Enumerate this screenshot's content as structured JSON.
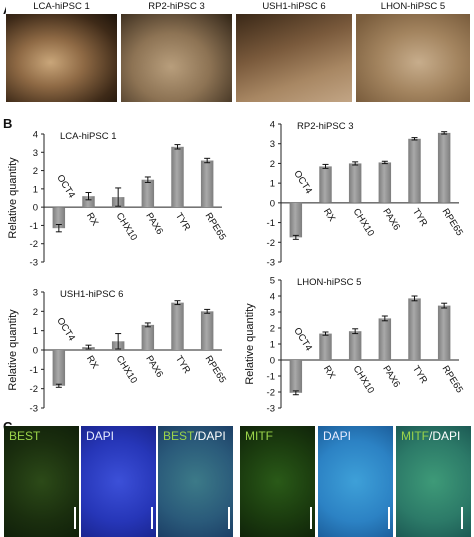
{
  "panels": {
    "a": "A",
    "b": "B",
    "c": "C"
  },
  "photos": [
    {
      "label": "LCA-hiPSC 1"
    },
    {
      "label": "RP2-hiPSC 3"
    },
    {
      "label": "USH1-hiPSC 6"
    },
    {
      "label": "LHON-hiPSC 5"
    }
  ],
  "chart_data": [
    {
      "type": "bar",
      "title": "LCA-hiPSC 1",
      "ylabel": "Relative quantity",
      "ylim": [
        -3,
        4
      ],
      "yticks": [
        "-3",
        "-2",
        "-1",
        "0",
        "1",
        "2",
        "3",
        "4"
      ],
      "categories": [
        "OCT4",
        "RX",
        "CHX10",
        "PAX6",
        "TYR",
        "RPE65"
      ],
      "values": [
        -1.15,
        0.6,
        0.55,
        1.5,
        3.3,
        2.55
      ],
      "errors": [
        0.2,
        0.2,
        0.5,
        0.15,
        0.12,
        0.12
      ],
      "grid": false
    },
    {
      "type": "bar",
      "title": "RP2-hiPSC 3",
      "ylabel": "",
      "ylim": [
        -3,
        4
      ],
      "yticks": [
        "-3",
        "-2",
        "-1",
        "0",
        "1",
        "2",
        "3",
        "4"
      ],
      "categories": [
        "OCT4",
        "RX",
        "CHX10",
        "PAX6",
        "TYR",
        "RPE65"
      ],
      "values": [
        -1.75,
        1.85,
        2.0,
        2.05,
        3.25,
        3.55
      ],
      "errors": [
        0.1,
        0.1,
        0.08,
        0.06,
        0.06,
        0.06
      ],
      "grid": false
    },
    {
      "type": "bar",
      "title": "USH1-hiPSC 6",
      "ylabel": "Relative quantity",
      "ylim": [
        -3,
        3
      ],
      "yticks": [
        "-3",
        "-2",
        "-1",
        "0",
        "1",
        "2",
        "3"
      ],
      "categories": [
        "OCT4",
        "RX",
        "CHX10",
        "PAX6",
        "TYR",
        "RPE65"
      ],
      "values": [
        -1.85,
        0.15,
        0.45,
        1.3,
        2.45,
        2.0
      ],
      "errors": [
        0.08,
        0.1,
        0.4,
        0.1,
        0.1,
        0.1
      ],
      "grid": false
    },
    {
      "type": "bar",
      "title": "LHON-hiPSC 5",
      "ylabel": "Relative quantity",
      "ylim": [
        -3,
        5
      ],
      "yticks": [
        "-3",
        "-2",
        "-1",
        "0",
        "1",
        "2",
        "3",
        "4",
        "5"
      ],
      "categories": [
        "OCT4",
        "RX",
        "CHX10",
        "PAX6",
        "TYR",
        "RPE65"
      ],
      "values": [
        -2.05,
        1.65,
        1.8,
        2.6,
        3.85,
        3.4
      ],
      "errors": [
        0.12,
        0.1,
        0.15,
        0.15,
        0.15,
        0.15
      ],
      "grid": false
    }
  ],
  "micrographs": [
    {
      "label": "BEST",
      "color": "#9bd44a"
    },
    {
      "label": "DAPI",
      "color": "#e8ecff"
    },
    {
      "label": "BEST",
      "label2": "/DAPI",
      "color": "#9bd44a"
    },
    {
      "label": "MITF",
      "color": "#9bd44a"
    },
    {
      "label": "DAPI",
      "color": "#e8ecff"
    },
    {
      "label": "MITF",
      "label2": "/DAPI",
      "color": "#9bd44a"
    }
  ],
  "colors": {
    "bar": "#a9a9a9",
    "bar_shade": "#7d7d7d"
  }
}
